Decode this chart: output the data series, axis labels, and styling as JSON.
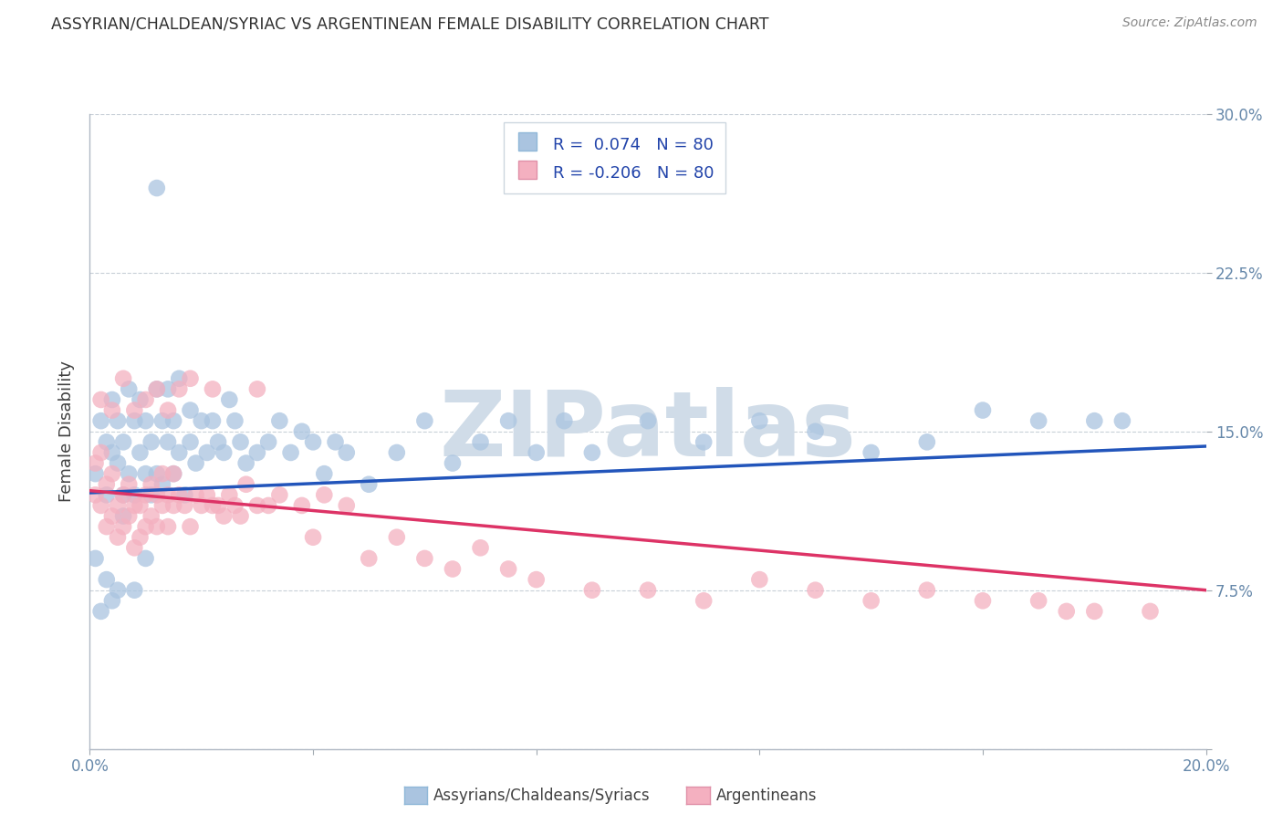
{
  "title": "ASSYRIAN/CHALDEAN/SYRIAC VS ARGENTINEAN FEMALE DISABILITY CORRELATION CHART",
  "source": "Source: ZipAtlas.com",
  "ylabel": "Female Disability",
  "xmin": 0.0,
  "xmax": 0.2,
  "ymin": 0.0,
  "ymax": 0.3,
  "xticks": [
    0.0,
    0.04,
    0.08,
    0.12,
    0.16,
    0.2
  ],
  "xticklabels": [
    "0.0%",
    "",
    "",
    "",
    "",
    "20.0%"
  ],
  "yticks": [
    0.0,
    0.075,
    0.15,
    0.225,
    0.3
  ],
  "right_yticklabels": [
    "",
    "7.5%",
    "15.0%",
    "22.5%",
    "30.0%"
  ],
  "legend_labels": [
    "Assyrians/Chaldeans/Syriacs",
    "Argentineans"
  ],
  "r_blue": 0.074,
  "n_blue": 80,
  "r_pink": -0.206,
  "n_pink": 80,
  "blue_color": "#aac4e0",
  "pink_color": "#f4b0c0",
  "blue_line_color": "#2255bb",
  "pink_line_color": "#dd3366",
  "title_color": "#303030",
  "axis_label_color": "#404040",
  "tick_color": "#6688aa",
  "grid_color": "#c8d0d8",
  "watermark": "ZIPatlas",
  "watermark_color": "#d0dce8",
  "blue_line_y0": 0.121,
  "blue_line_y1": 0.143,
  "pink_line_y0": 0.122,
  "pink_line_y1": 0.075,
  "blue_scatter_x": [
    0.001,
    0.002,
    0.003,
    0.003,
    0.004,
    0.004,
    0.005,
    0.005,
    0.006,
    0.006,
    0.007,
    0.007,
    0.008,
    0.008,
    0.009,
    0.009,
    0.01,
    0.01,
    0.011,
    0.011,
    0.012,
    0.012,
    0.013,
    0.013,
    0.014,
    0.014,
    0.015,
    0.015,
    0.016,
    0.016,
    0.017,
    0.018,
    0.018,
    0.019,
    0.02,
    0.021,
    0.022,
    0.023,
    0.024,
    0.025,
    0.026,
    0.027,
    0.028,
    0.03,
    0.032,
    0.034,
    0.036,
    0.038,
    0.04,
    0.042,
    0.044,
    0.046,
    0.05,
    0.055,
    0.06,
    0.065,
    0.07,
    0.075,
    0.08,
    0.085,
    0.09,
    0.1,
    0.11,
    0.12,
    0.13,
    0.14,
    0.15,
    0.16,
    0.17,
    0.18,
    0.001,
    0.002,
    0.003,
    0.004,
    0.005,
    0.006,
    0.008,
    0.01,
    0.012,
    0.185
  ],
  "blue_scatter_y": [
    0.13,
    0.155,
    0.12,
    0.145,
    0.165,
    0.14,
    0.135,
    0.155,
    0.12,
    0.145,
    0.17,
    0.13,
    0.155,
    0.12,
    0.14,
    0.165,
    0.13,
    0.155,
    0.12,
    0.145,
    0.13,
    0.17,
    0.155,
    0.125,
    0.145,
    0.17,
    0.13,
    0.155,
    0.175,
    0.14,
    0.12,
    0.145,
    0.16,
    0.135,
    0.155,
    0.14,
    0.155,
    0.145,
    0.14,
    0.165,
    0.155,
    0.145,
    0.135,
    0.14,
    0.145,
    0.155,
    0.14,
    0.15,
    0.145,
    0.13,
    0.145,
    0.14,
    0.125,
    0.14,
    0.155,
    0.135,
    0.145,
    0.155,
    0.14,
    0.155,
    0.14,
    0.155,
    0.145,
    0.155,
    0.15,
    0.14,
    0.145,
    0.16,
    0.155,
    0.155,
    0.09,
    0.065,
    0.08,
    0.07,
    0.075,
    0.11,
    0.075,
    0.09,
    0.265,
    0.155
  ],
  "pink_scatter_x": [
    0.001,
    0.001,
    0.002,
    0.002,
    0.003,
    0.003,
    0.004,
    0.004,
    0.005,
    0.005,
    0.006,
    0.006,
    0.007,
    0.007,
    0.008,
    0.008,
    0.009,
    0.009,
    0.01,
    0.01,
    0.011,
    0.011,
    0.012,
    0.012,
    0.013,
    0.013,
    0.014,
    0.014,
    0.015,
    0.015,
    0.016,
    0.017,
    0.018,
    0.019,
    0.02,
    0.021,
    0.022,
    0.023,
    0.024,
    0.025,
    0.026,
    0.027,
    0.028,
    0.03,
    0.032,
    0.034,
    0.038,
    0.042,
    0.046,
    0.05,
    0.055,
    0.06,
    0.065,
    0.07,
    0.075,
    0.08,
    0.09,
    0.1,
    0.11,
    0.12,
    0.13,
    0.14,
    0.15,
    0.16,
    0.17,
    0.18,
    0.19,
    0.002,
    0.004,
    0.006,
    0.008,
    0.01,
    0.012,
    0.014,
    0.016,
    0.018,
    0.022,
    0.03,
    0.04,
    0.175
  ],
  "pink_scatter_y": [
    0.135,
    0.12,
    0.14,
    0.115,
    0.125,
    0.105,
    0.13,
    0.11,
    0.115,
    0.1,
    0.12,
    0.105,
    0.125,
    0.11,
    0.115,
    0.095,
    0.115,
    0.1,
    0.12,
    0.105,
    0.11,
    0.125,
    0.12,
    0.105,
    0.115,
    0.13,
    0.12,
    0.105,
    0.115,
    0.13,
    0.12,
    0.115,
    0.105,
    0.12,
    0.115,
    0.12,
    0.115,
    0.115,
    0.11,
    0.12,
    0.115,
    0.11,
    0.125,
    0.115,
    0.115,
    0.12,
    0.115,
    0.12,
    0.115,
    0.09,
    0.1,
    0.09,
    0.085,
    0.095,
    0.085,
    0.08,
    0.075,
    0.075,
    0.07,
    0.08,
    0.075,
    0.07,
    0.075,
    0.07,
    0.07,
    0.065,
    0.065,
    0.165,
    0.16,
    0.175,
    0.16,
    0.165,
    0.17,
    0.16,
    0.17,
    0.175,
    0.17,
    0.17,
    0.1,
    0.065
  ]
}
